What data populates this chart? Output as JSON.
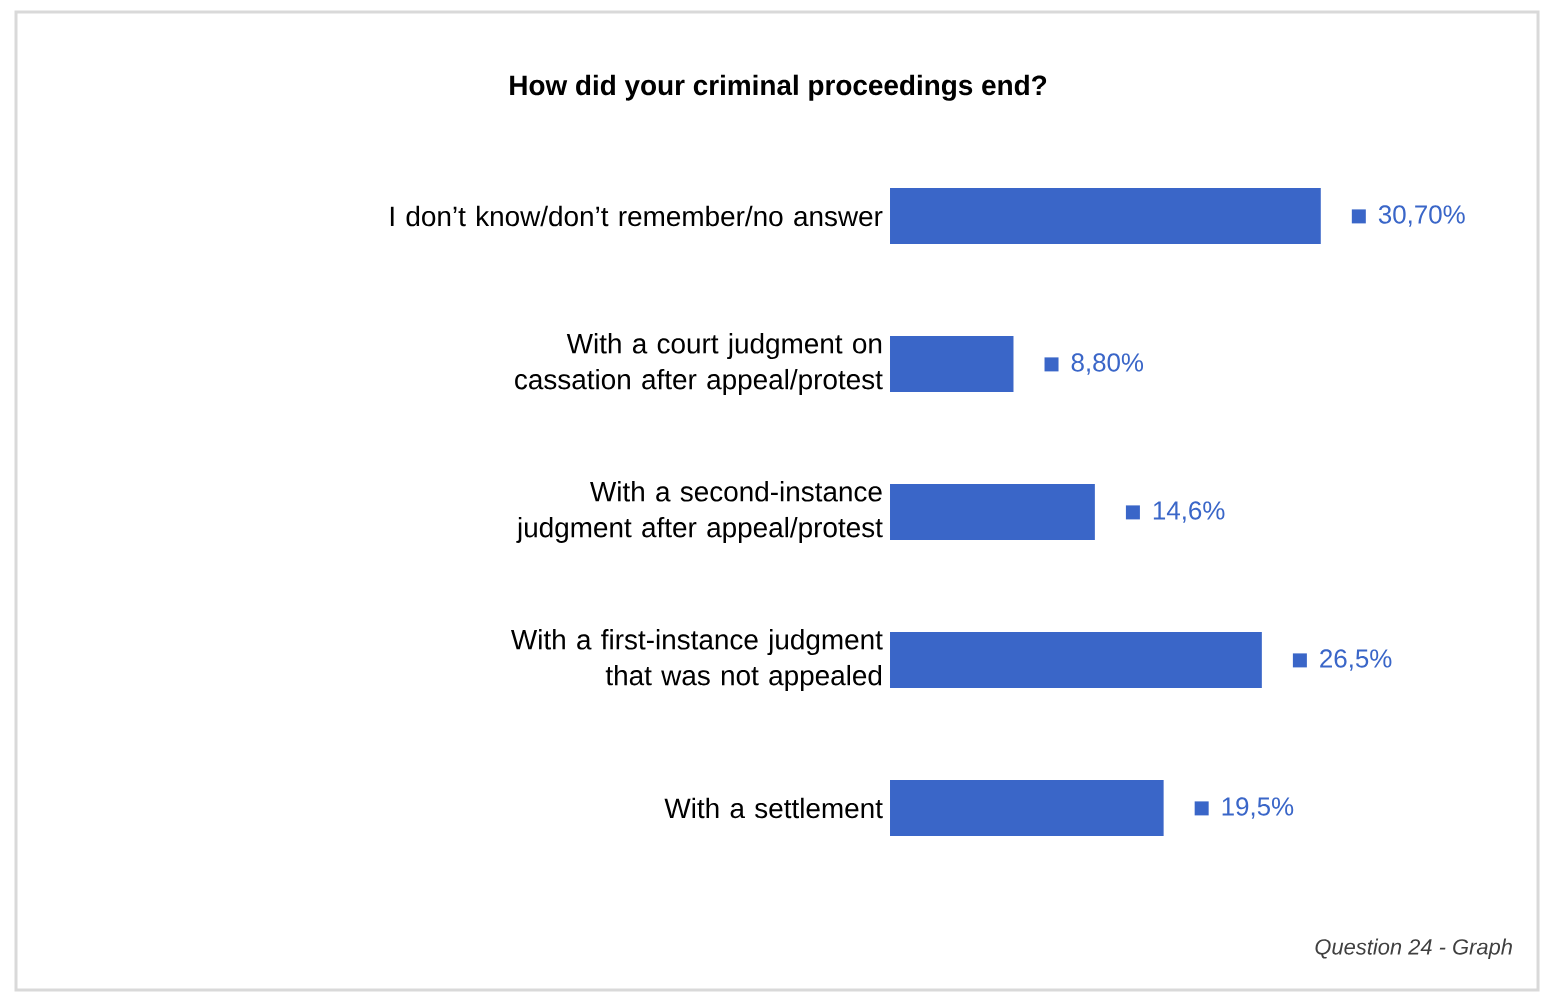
{
  "chart_data": {
    "type": "bar",
    "orientation": "horizontal",
    "title": "How did your criminal proceedings end?",
    "categories": [
      "I don’t know/don’t remember/no answer",
      "With a court judgment on cassation after appeal/protest",
      "With a second-instance judgment after appeal/protest",
      "With a first-instance judgment that was not appealed",
      "With a settlement"
    ],
    "values": [
      30.7,
      8.8,
      14.6,
      26.5,
      19.5
    ],
    "value_labels": [
      "30,70%",
      "8,80%",
      "14,6%",
      "26,5%",
      "19,5%"
    ],
    "color": "#3a66c8",
    "annotations": [
      "Question 24 - Graph"
    ]
  }
}
